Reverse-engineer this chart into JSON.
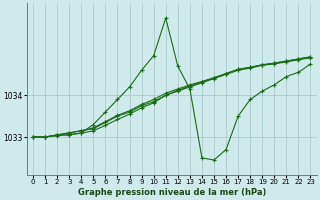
{
  "background_color": "#ceeaea",
  "grid_color": "#aacccc",
  "line_color": "#1a6b1a",
  "marker_color": "#1a6b1a",
  "title": "Graphe pression niveau de la mer (hPa)",
  "yticks": [
    1033,
    1034
  ],
  "ylim": [
    1032.1,
    1036.2
  ],
  "xlim": [
    -0.5,
    23.5
  ],
  "xticks": [
    0,
    1,
    2,
    3,
    4,
    5,
    6,
    7,
    8,
    9,
    10,
    11,
    12,
    13,
    14,
    15,
    16,
    17,
    18,
    19,
    20,
    21,
    22,
    23
  ],
  "series": [
    [
      1033.0,
      1033.0,
      1033.05,
      1033.05,
      1033.1,
      1033.3,
      1033.6,
      1033.9,
      1034.2,
      1034.6,
      1034.95,
      1035.85,
      1034.7,
      1034.15,
      1032.5,
      1032.45,
      1032.7,
      1033.5,
      1033.9,
      1034.1,
      1034.25,
      1034.45,
      1034.55,
      1034.75
    ],
    [
      1033.0,
      1033.0,
      1033.05,
      1033.1,
      1033.15,
      1033.2,
      1033.35,
      1033.5,
      1033.6,
      1033.75,
      1033.85,
      1034.0,
      1034.1,
      1034.2,
      1034.3,
      1034.4,
      1034.5,
      1034.6,
      1034.65,
      1034.72,
      1034.75,
      1034.8,
      1034.85,
      1034.9
    ],
    [
      1033.0,
      1033.0,
      1033.05,
      1033.1,
      1033.15,
      1033.22,
      1033.37,
      1033.52,
      1033.63,
      1033.78,
      1033.9,
      1034.05,
      1034.15,
      1034.25,
      1034.33,
      1034.42,
      1034.52,
      1034.62,
      1034.67,
      1034.73,
      1034.77,
      1034.82,
      1034.87,
      1034.92
    ],
    [
      1033.0,
      1033.0,
      1033.03,
      1033.06,
      1033.09,
      1033.15,
      1033.28,
      1033.42,
      1033.55,
      1033.7,
      1033.82,
      1034.0,
      1034.12,
      1034.22,
      1034.32,
      1034.42,
      1034.52,
      1034.62,
      1034.67,
      1034.73,
      1034.77,
      1034.82,
      1034.87,
      1034.92
    ]
  ]
}
